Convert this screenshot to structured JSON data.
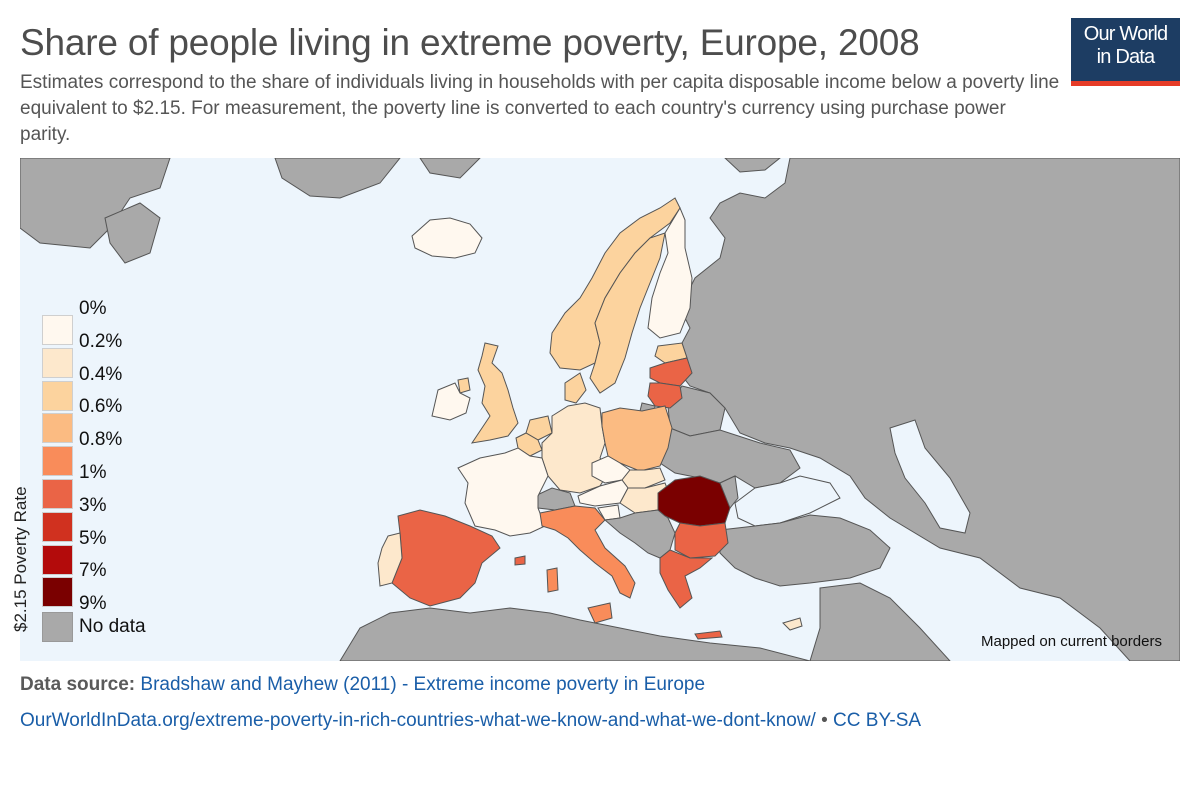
{
  "title": "Share of people living in extreme poverty, Europe, 2008",
  "subtitle": "Estimates correspond to the share of individuals living in households with per capita disposable income below a poverty line equivalent to $2.15. For measurement, the poverty line is converted to each country's currency using purchase power parity.",
  "logo": {
    "line1": "Our World",
    "line2": "in Data"
  },
  "legend": {
    "title": "$2.15 Poverty Rate",
    "bins": [
      {
        "label": "0%",
        "color": null
      },
      {
        "label": "0.2%",
        "color": "#fff8ef"
      },
      {
        "label": "0.4%",
        "color": "#fde8cc"
      },
      {
        "label": "0.6%",
        "color": "#fcd39e"
      },
      {
        "label": "0.8%",
        "color": "#fbbb82"
      },
      {
        "label": "1%",
        "color": "#f98c5a"
      },
      {
        "label": "3%",
        "color": "#ea6446"
      },
      {
        "label": "5%",
        "color": "#d0311f"
      },
      {
        "label": "7%",
        "color": "#b30b0b"
      },
      {
        "label": "9%",
        "color": "#7a0000"
      }
    ],
    "no_data": {
      "label": "No data",
      "color": "#a9a9a9"
    }
  },
  "map_note": "Mapped on current borders",
  "source": {
    "label": "Data source:",
    "text": "Bradshaw and Mayhew (2011) - Extreme income poverty in Europe"
  },
  "footer": {
    "url": "OurWorldInData.org/extreme-poverty-in-rich-countries-what-we-know-and-what-we-dont-know/",
    "separator": " • ",
    "license": "CC BY-SA"
  },
  "countries": [
    {
      "name": "Iceland",
      "color": "#fff8ef"
    },
    {
      "name": "Norway",
      "color": "#fcd39e"
    },
    {
      "name": "Sweden",
      "color": "#fcd39e"
    },
    {
      "name": "Finland",
      "color": "#fff8ef"
    },
    {
      "name": "Estonia",
      "color": "#fcd39e"
    },
    {
      "name": "Latvia",
      "color": "#ea6446"
    },
    {
      "name": "Lithuania",
      "color": "#ea6446"
    },
    {
      "name": "United Kingdom",
      "color": "#fcd39e"
    },
    {
      "name": "Ireland",
      "color": "#fff8ef"
    },
    {
      "name": "Denmark",
      "color": "#fcd39e"
    },
    {
      "name": "Netherlands",
      "color": "#fcd39e"
    },
    {
      "name": "Belgium",
      "color": "#fcd39e"
    },
    {
      "name": "Luxembourg",
      "color": "#fde8cc"
    },
    {
      "name": "Germany",
      "color": "#fde8cc"
    },
    {
      "name": "Poland",
      "color": "#fbbb82"
    },
    {
      "name": "Czechia",
      "color": "#fff8ef"
    },
    {
      "name": "Slovakia",
      "color": "#fde8cc"
    },
    {
      "name": "Austria",
      "color": "#fff8ef"
    },
    {
      "name": "Hungary",
      "color": "#fde8cc"
    },
    {
      "name": "Slovenia",
      "color": "#fff8ef"
    },
    {
      "name": "France",
      "color": "#fff8ef"
    },
    {
      "name": "Switzerland",
      "color": "#a9a9a9"
    },
    {
      "name": "Italy",
      "color": "#f98c5a"
    },
    {
      "name": "Spain",
      "color": "#ea6446"
    },
    {
      "name": "Portugal",
      "color": "#fde8cc"
    },
    {
      "name": "Romania",
      "color": "#7a0000"
    },
    {
      "name": "Bulgaria",
      "color": "#ea6446"
    },
    {
      "name": "Greece",
      "color": "#ea6446"
    },
    {
      "name": "Cyprus",
      "color": "#fde8cc"
    }
  ]
}
